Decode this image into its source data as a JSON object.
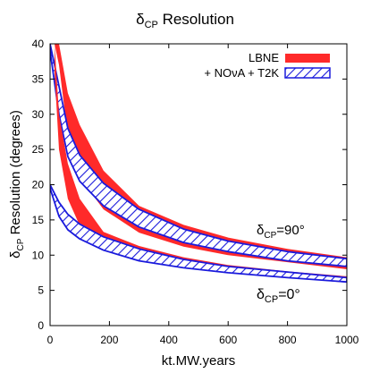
{
  "chart_data": {
    "type": "area",
    "title": {
      "main": "δ",
      "sub": "CP",
      "tail": " Resolution"
    },
    "xlabel": "kt.MW.years",
    "ylabel": {
      "main": "δ",
      "sub": "CP",
      "tail": " Resolution (degrees)"
    },
    "xlim": [
      0,
      1000
    ],
    "ylim": [
      0,
      40
    ],
    "xticks": [
      "0",
      "200",
      "400",
      "600",
      "800",
      "1000"
    ],
    "yticks": [
      "0",
      "5",
      "10",
      "15",
      "20",
      "25",
      "30",
      "35",
      "40"
    ],
    "grid": false,
    "legend_position": "top-right",
    "colors": {
      "lbne": "#ff2a2a",
      "combined": "#1a1adc"
    },
    "series": [
      {
        "name": "LBNE",
        "case": "90",
        "style": "solid",
        "x": [
          15,
          30,
          60,
          100,
          180,
          300,
          450,
          600,
          800,
          1000
        ],
        "upper": [
          40,
          40,
          33,
          28.5,
          22,
          17,
          14.3,
          12.5,
          10.9,
          9.7
        ],
        "lower": [
          40,
          37,
          27,
          21,
          16.5,
          13.2,
          11.2,
          10.0,
          9.0,
          8.0
        ]
      },
      {
        "name": "+ NOνA + T2K",
        "case": "90",
        "style": "hatched",
        "x": [
          0,
          30,
          60,
          100,
          180,
          300,
          450,
          600,
          800,
          1000
        ],
        "upper": [
          40,
          34,
          28,
          24.2,
          20.2,
          16.5,
          13.7,
          12.0,
          10.5,
          9.5
        ],
        "lower": [
          39,
          30,
          24,
          20.5,
          17.0,
          14.0,
          11.8,
          10.5,
          9.2,
          8.4
        ]
      },
      {
        "name": "LBNE",
        "case": "0",
        "style": "solid",
        "x": [
          15,
          30,
          60,
          100,
          180,
          300,
          450,
          600,
          800,
          1000
        ],
        "upper": [
          40,
          30,
          23,
          18,
          13.3,
          11.3,
          9.7,
          8.6,
          7.7,
          7.0
        ],
        "lower": [
          36,
          25,
          18,
          14.2,
          11.8,
          9.6,
          8.3,
          7.5,
          6.8,
          6.1
        ]
      },
      {
        "name": "+ NOνA + T2K",
        "case": "0",
        "style": "hatched",
        "x": [
          0,
          30,
          60,
          100,
          180,
          300,
          450,
          600,
          800,
          1000
        ],
        "upper": [
          20,
          17.5,
          15.8,
          14.4,
          12.6,
          10.9,
          9.4,
          8.4,
          7.6,
          6.8
        ],
        "lower": [
          19.5,
          15.5,
          13.6,
          12.3,
          10.7,
          9.2,
          8.2,
          7.5,
          6.8,
          6.2
        ]
      }
    ],
    "annotations": [
      {
        "main": "δ",
        "sub": "CP",
        "tail": "=90°",
        "x": 560,
        "y": 13.3
      },
      {
        "main": "δ",
        "sub": "CP",
        "tail": "=0°",
        "x": 560,
        "y": 3.8
      }
    ],
    "legend": [
      {
        "label": "LBNE",
        "style": "solid"
      },
      {
        "label": "+ NOνA + T2K",
        "style": "hatched"
      }
    ]
  }
}
